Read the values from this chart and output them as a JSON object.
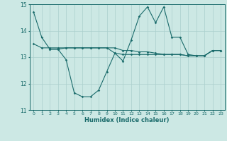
{
  "title": "",
  "xlabel": "Humidex (Indice chaleur)",
  "xlim_left": -0.5,
  "xlim_right": 23.5,
  "ylim": [
    11,
    15
  ],
  "yticks": [
    11,
    12,
    13,
    14,
    15
  ],
  "xticks": [
    0,
    1,
    2,
    3,
    4,
    5,
    6,
    7,
    8,
    9,
    10,
    11,
    12,
    13,
    14,
    15,
    16,
    17,
    18,
    19,
    20,
    21,
    22,
    23
  ],
  "bg_color": "#cce8e4",
  "line_color": "#1a6b6b",
  "grid_color": "#aacfcc",
  "line1_x": [
    0,
    1,
    2,
    3,
    4,
    5,
    6,
    7,
    8,
    9,
    10,
    11,
    12,
    13,
    14,
    15,
    16,
    17,
    18,
    19,
    20,
    21,
    22,
    23
  ],
  "line1_y": [
    14.7,
    13.75,
    13.3,
    13.3,
    12.9,
    11.65,
    11.5,
    11.5,
    11.75,
    12.45,
    13.15,
    12.85,
    13.65,
    14.55,
    14.9,
    14.3,
    14.9,
    13.75,
    13.75,
    13.1,
    13.05,
    13.05,
    13.25,
    13.25
  ],
  "line2_x": [
    0,
    1,
    2,
    3,
    4,
    5,
    6,
    7,
    8,
    9,
    10,
    11,
    12,
    13,
    14,
    15,
    16,
    17,
    18,
    19,
    20,
    21,
    22,
    23
  ],
  "line2_y": [
    13.5,
    13.35,
    13.35,
    13.35,
    13.35,
    13.35,
    13.35,
    13.35,
    13.35,
    13.35,
    13.35,
    13.25,
    13.25,
    13.2,
    13.2,
    13.15,
    13.1,
    13.1,
    13.1,
    13.05,
    13.05,
    13.05,
    13.25,
    13.25
  ],
  "line3_x": [
    2,
    3,
    4,
    5,
    6,
    7,
    8,
    9,
    10,
    11,
    12,
    13,
    14,
    15,
    16,
    17,
    18,
    19,
    20,
    21,
    22,
    23
  ],
  "line3_y": [
    13.3,
    13.3,
    13.35,
    13.35,
    13.35,
    13.35,
    13.35,
    13.35,
    13.15,
    13.1,
    13.1,
    13.1,
    13.1,
    13.1,
    13.1,
    13.1,
    13.1,
    13.05,
    13.05,
    13.05,
    13.25,
    13.25
  ]
}
